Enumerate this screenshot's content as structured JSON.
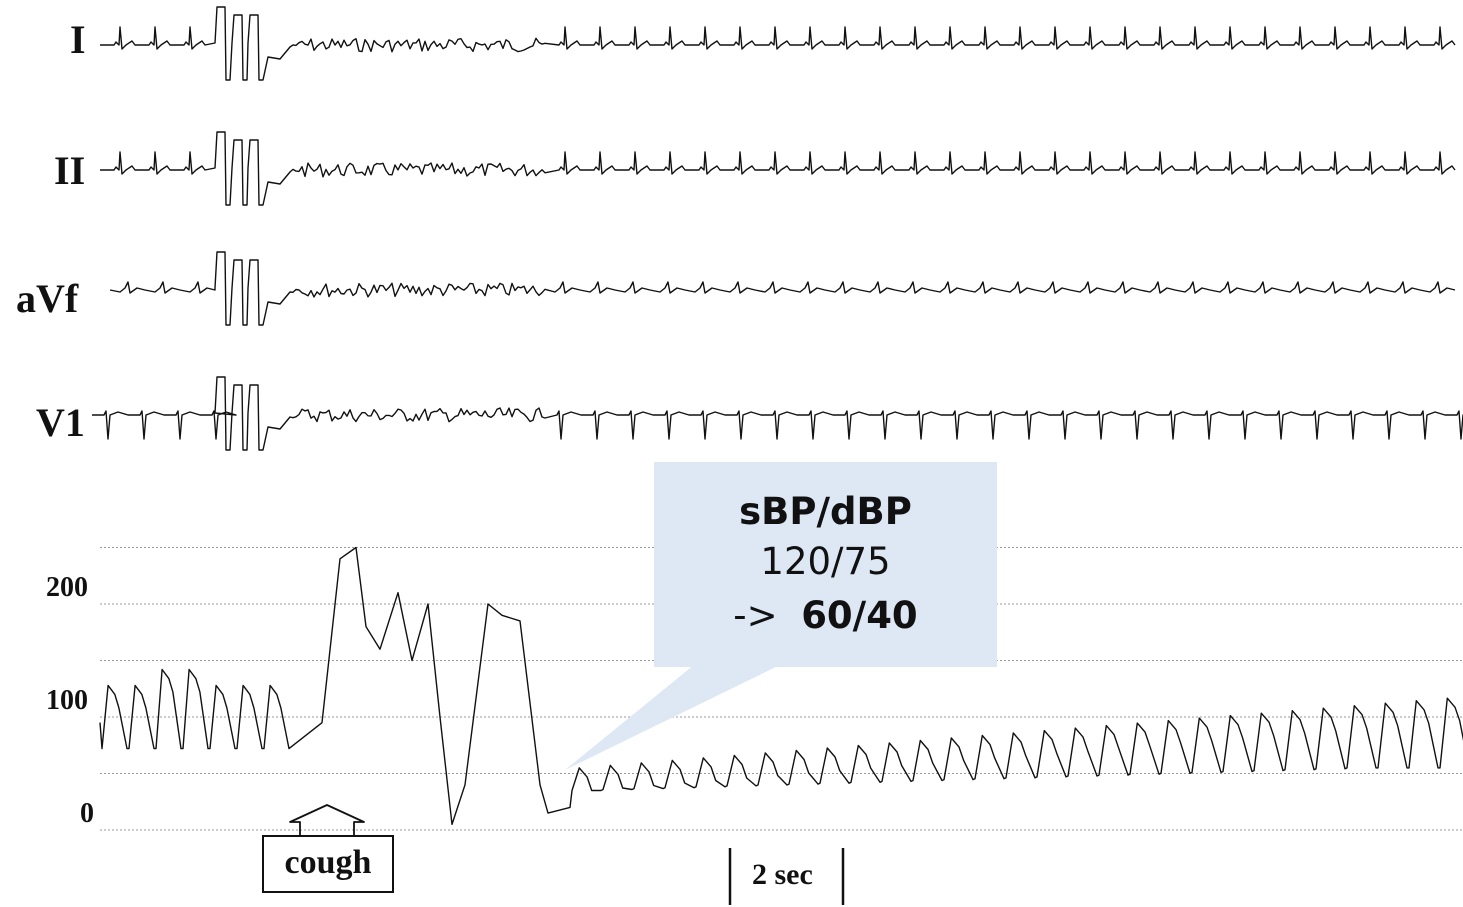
{
  "leads": [
    {
      "name": "I",
      "pattern": "upright_small"
    },
    {
      "name": "II",
      "pattern": "upright_small"
    },
    {
      "name": "aVf",
      "pattern": "flat_small"
    },
    {
      "name": "V1",
      "pattern": "inverted"
    }
  ],
  "bp_axis": {
    "ticks": [
      "200",
      "100",
      "0"
    ],
    "unit_guides": [
      0,
      100,
      200
    ]
  },
  "callout": {
    "title": "sBP/dBP",
    "before": "120/75",
    "arrow": "->",
    "after": "60/40"
  },
  "event_label": "cough",
  "time_scale_label": "2 sec",
  "colors": {
    "trace": "#111111",
    "callout_bg": "#dde8f4",
    "grid": "#9a9a9a"
  }
}
